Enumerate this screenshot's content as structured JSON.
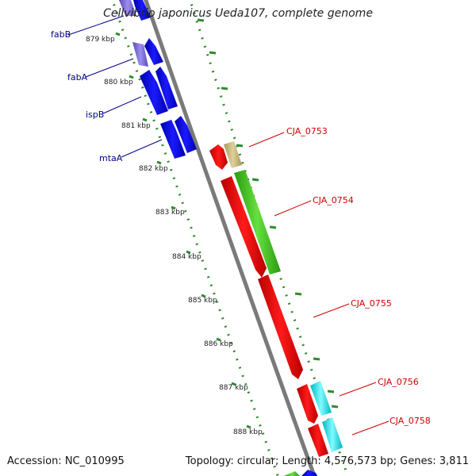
{
  "title": "Cellvibrio japonicus Ueda107, complete genome",
  "accession_text": "Accession: NC_010995",
  "summary_text": "Topology: circular; Length: 4,576,573 bp; Genes: 3,811",
  "colors": {
    "backbone": "#808080",
    "tick_green": "#2e8b2e",
    "left_label": "#00008b",
    "right_label": "#cc0000",
    "blue_gene": "#0000ee",
    "violet_gene": "#7f6fd8",
    "red_gene": "#ee0000",
    "olive_gene": "#c8b878",
    "green_gene": "#44cc22",
    "cyan_gene": "#00e8e8"
  },
  "scale_ticks": [
    "879 kbp",
    "880 kbp",
    "881 kbp",
    "882 kbp",
    "883 kbp",
    "884 kbp",
    "885 kbp",
    "886 kbp",
    "887 kbp",
    "888 kbp"
  ],
  "left_labels": [
    {
      "id": "fabB",
      "label": "fabB"
    },
    {
      "id": "fabA",
      "label": "fabA"
    },
    {
      "id": "ispB",
      "label": "ispB"
    },
    {
      "id": "mtaA",
      "label": "mtaA"
    }
  ],
  "right_labels": [
    {
      "id": "cja0753",
      "label": "CJA_0753"
    },
    {
      "id": "cja0754",
      "label": "CJA_0754"
    },
    {
      "id": "cja0755",
      "label": "CJA_0755"
    },
    {
      "id": "cja0756",
      "label": "CJA_0756"
    },
    {
      "id": "cja0758",
      "label": "CJA_0758"
    }
  ]
}
